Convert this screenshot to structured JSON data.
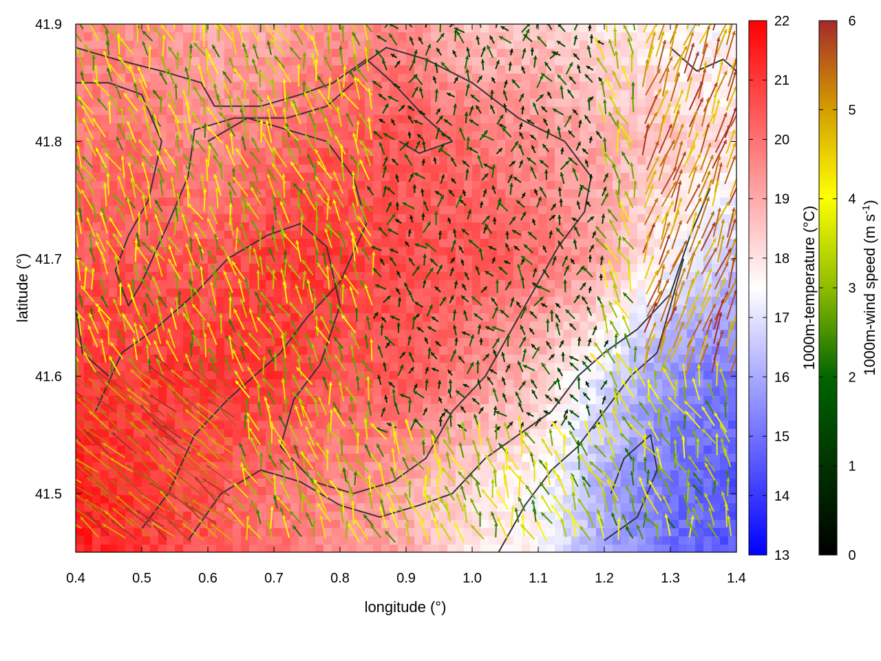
{
  "chart_data": {
    "type": "heatmap",
    "title": "",
    "xlabel": "longitude (°)",
    "ylabel": "latitude (°)",
    "xlim": [
      0.4,
      1.4
    ],
    "ylim": [
      41.45,
      41.9
    ],
    "xticks": [
      "0.4",
      "0.5",
      "0.6",
      "0.7",
      "0.8",
      "0.9",
      "1.0",
      "1.1",
      "1.2",
      "1.3",
      "1.4"
    ],
    "yticks": [
      "41.5",
      "41.6",
      "41.7",
      "41.8",
      "41.9"
    ],
    "overlay": "wind vectors (arrows colored by wind speed) and terrain contour lines",
    "temperature_colorbar": {
      "label": "1000m-temperature (°C)",
      "range": [
        13,
        22
      ],
      "ticks": [
        "13",
        "14",
        "15",
        "16",
        "17",
        "18",
        "19",
        "20",
        "21",
        "22"
      ],
      "colors": [
        "#0000ff",
        "#ffffff",
        "#ff0000"
      ]
    },
    "windspeed_colorbar": {
      "label_main": "1000m-wind speed (m s",
      "label_sup": "-1",
      "label_end": ")",
      "range": [
        0,
        6
      ],
      "ticks": [
        "0",
        "1",
        "2",
        "3",
        "4",
        "5",
        "6"
      ],
      "colors": [
        "#000000",
        "#006400",
        "#8fbc00",
        "#ffff00",
        "#d4a000",
        "#a52a2a"
      ]
    },
    "temperature_field_approx": {
      "x": [
        0.4,
        0.5,
        0.6,
        0.7,
        0.8,
        0.9,
        1.0,
        1.1,
        1.2,
        1.3,
        1.4
      ],
      "y": [
        41.9,
        41.8,
        41.7,
        41.6,
        41.5
      ],
      "values": [
        [
          19.5,
          19.5,
          19.0,
          19.0,
          19.5,
          19.5,
          18.5,
          18.5,
          18.0,
          17.5,
          17.5
        ],
        [
          20.0,
          20.0,
          19.5,
          20.0,
          20.5,
          20.5,
          20.0,
          19.5,
          19.0,
          18.5,
          18.0
        ],
        [
          20.5,
          20.5,
          20.5,
          21.0,
          21.0,
          20.5,
          20.5,
          20.0,
          19.0,
          17.5,
          16.5
        ],
        [
          21.0,
          21.0,
          21.0,
          21.0,
          20.5,
          20.5,
          19.5,
          18.5,
          17.0,
          15.5,
          15.0
        ],
        [
          21.5,
          21.0,
          20.5,
          20.0,
          19.5,
          19.0,
          18.0,
          17.5,
          16.0,
          15.0,
          14.5
        ]
      ]
    }
  }
}
